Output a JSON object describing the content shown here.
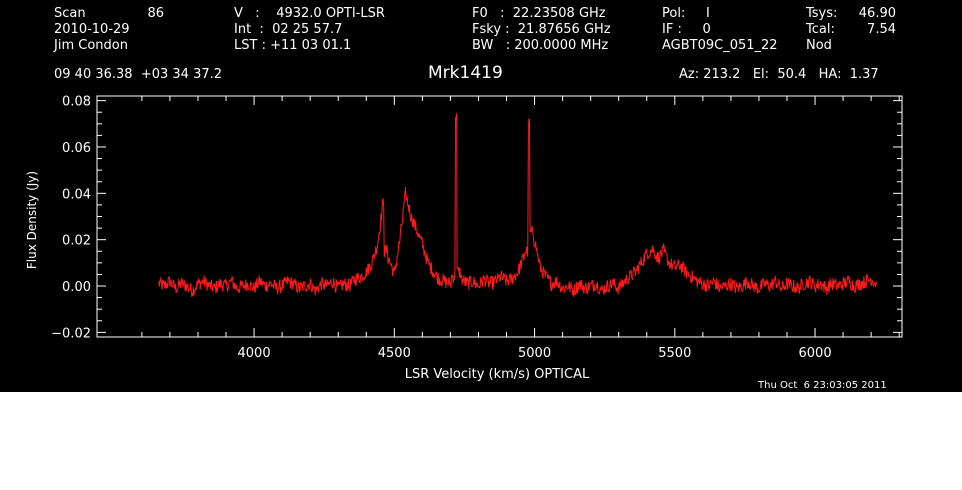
{
  "header": {
    "col1": {
      "scan_label": "Scan",
      "scan_value": "86",
      "date": "2010-10-29",
      "observer": "Jim Condon"
    },
    "col2": {
      "v_line": "V   :    4932.0 OPTI-LSR",
      "int_line": "Int  :  02 25 57.7",
      "lst_line": "LST : +11 03 01.1"
    },
    "col3": {
      "f0_line": "F0   :  22.23508 GHz",
      "fsky_line": "Fsky :  21.87656 GHz",
      "bw_line": "BW   : 200.0000 MHz"
    },
    "col4": {
      "pol_line": "Pol:     I",
      "if_line": "IF :     0",
      "project": "AGBT09C_051_22"
    },
    "col5": {
      "tsys_label": "Tsys:",
      "tsys_value": "46.90",
      "tcal_label": "Tcal:",
      "tcal_value": "7.54",
      "mode": "Nod"
    },
    "coords": "09 40 36.38  +03 34 37.2",
    "source": "Mrk1419",
    "azel": "Az: 213.2   El:  50.4   HA:  1.37"
  },
  "timestamp": "Thu Oct  6 23:03:05 2011",
  "colors": {
    "background": "#000000",
    "foreground": "#ffffff",
    "trace": "#ff1a1a"
  },
  "chart_data": {
    "type": "line",
    "xlabel": "LSR Velocity (km/s) OPTICAL",
    "ylabel": "Flux Density (Jy)",
    "xlim": [
      3440,
      6310
    ],
    "ylim": [
      -0.022,
      0.082
    ],
    "xticks": [
      4000,
      4500,
      5000,
      5500,
      6000
    ],
    "xtick_labels": [
      "4000",
      "4500",
      "5000",
      "5500",
      "6000"
    ],
    "yticks": [
      -0.02,
      0.0,
      0.02,
      0.04,
      0.06,
      0.08
    ],
    "ytick_labels": [
      "−0.02",
      "0.00",
      "0.02",
      "0.04",
      "0.06",
      "0.08"
    ],
    "grid": false,
    "series": [
      {
        "x_start": 3660,
        "x_end": 6220,
        "x_step": 20,
        "baseline_noise_jy": 0.003,
        "y": [
          0.001,
          0.0,
          0.002,
          -0.001,
          0.001,
          0.0,
          -0.002,
          0.001,
          0.002,
          0.0,
          -0.001,
          0.001,
          0.0,
          0.002,
          -0.001,
          0.0,
          0.001,
          -0.001,
          0.002,
          0.0,
          0.001,
          -0.001,
          0.0,
          0.002,
          0.001,
          -0.001,
          0.0,
          0.001,
          -0.002,
          0.001,
          0.0,
          0.002,
          -0.001,
          0.001,
          0.0,
          0.003,
          0.004,
          0.006,
          0.01,
          0.018,
          0.036,
          0.012,
          0.005,
          0.02,
          0.04,
          0.03,
          0.024,
          0.018,
          0.01,
          0.006,
          0.003,
          0.002,
          0.001,
          0.074,
          0.003,
          0.001,
          0.002,
          0.0,
          0.003,
          0.001,
          0.002,
          0.004,
          0.002,
          0.003,
          0.006,
          0.012,
          0.07,
          0.02,
          0.008,
          0.004,
          0.001,
          0.002,
          -0.001,
          0.0,
          -0.002,
          0.001,
          -0.001,
          0.0,
          0.001,
          -0.002,
          0.0,
          0.001,
          -0.001,
          0.002,
          0.004,
          0.006,
          0.01,
          0.014,
          0.016,
          0.012,
          0.015,
          0.01,
          0.008,
          0.009,
          0.006,
          0.004,
          0.002,
          0.001,
          0.0,
          0.002,
          -0.001,
          0.0,
          0.001,
          -0.001,
          0.0,
          0.002,
          0.0,
          -0.001,
          0.001,
          0.0,
          0.002,
          -0.001,
          0.001,
          0.0,
          -0.001,
          0.001,
          0.002,
          0.0,
          0.001,
          -0.001,
          0.001,
          0.0,
          0.001,
          0.002,
          0.0,
          0.001,
          0.002,
          0.003,
          0.001
        ]
      }
    ]
  }
}
